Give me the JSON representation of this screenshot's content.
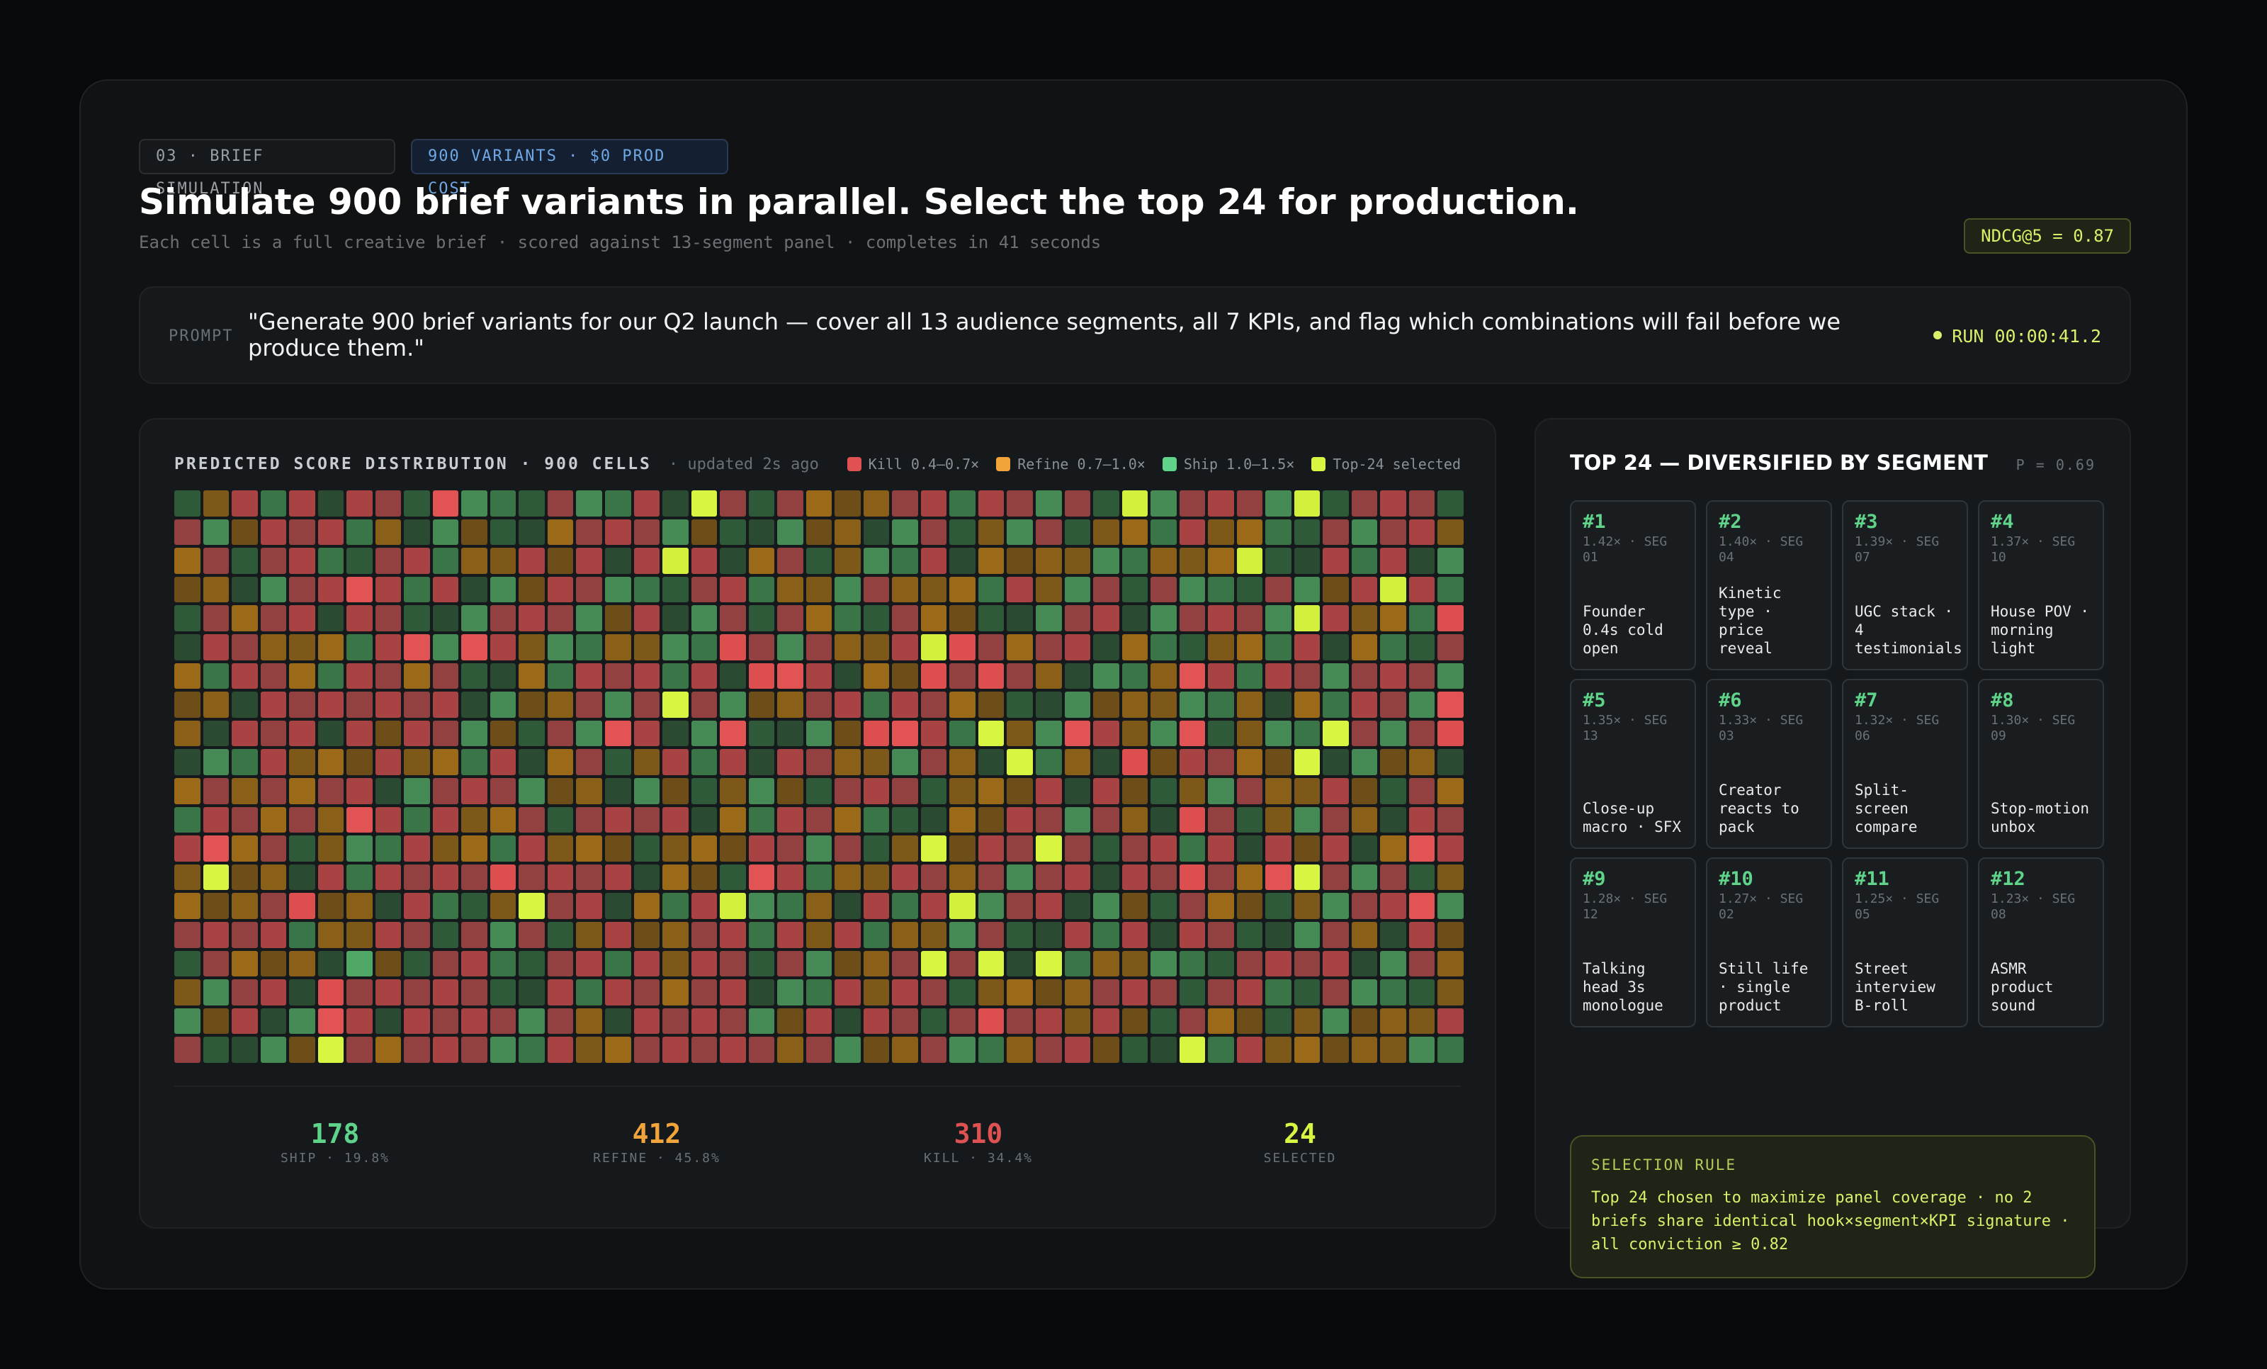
{
  "header": {
    "step_label": "03 · BRIEF SIMULATION",
    "variants_label": "900 VARIANTS · $0 PROD COST",
    "title": "Simulate 900 brief variants in parallel. Select the top 24 for production.",
    "subtitle": "Each cell is a full creative brief · scored against 13-segment panel · completes in 41 seconds",
    "metric_badge": "NDCG@5 = 0.87"
  },
  "prompt": {
    "label": "PROMPT",
    "text": "\"Generate 900 brief variants for our Q2 launch — cover all 13 audience segments, all 7 KPIs, and flag which combinations will fail before we produce them.\"",
    "status": "RUN 00:00:41.2"
  },
  "distribution": {
    "title": "PREDICTED SCORE DISTRIBUTION · 900 CELLS",
    "updated": "· updated 2s ago",
    "legend": [
      {
        "label": "Kill 0.4–0.7×",
        "color": "#e05252"
      },
      {
        "label": "Refine 0.7–1.0×",
        "color": "#f0a43a"
      },
      {
        "label": "Ship 1.0–1.5×",
        "color": "#5fd38a"
      },
      {
        "label": "Top-24 selected",
        "color": "#d8f542"
      }
    ],
    "stats": [
      {
        "value": "178",
        "label": "SHIP · 19.8%",
        "color": "#5fd38a"
      },
      {
        "value": "412",
        "label": "REFINE · 45.8%",
        "color": "#f0a43a"
      },
      {
        "value": "310",
        "label": "KILL · 34.4%",
        "color": "#e05252"
      },
      {
        "value": "24",
        "label": "SELECTED",
        "color": "#d8f542"
      }
    ]
  },
  "chart_data": {
    "type": "heatmap",
    "title": "PREDICTED SCORE DISTRIBUTION · 900 CELLS",
    "columns": 45,
    "rows": 20,
    "categories": [
      "Kill",
      "Refine",
      "Ship",
      "Top-24 selected"
    ],
    "counts": [
      310,
      412,
      178,
      24
    ],
    "cells": [
      "gorgrgrrgRgggrggrgYrgrooorrgrrgrgYgrrrgYgrrrg",
      "rgorrrgoggoggorrrgogggooggrgogrgoogrooggrgrro",
      "orgrrggrrgoororgrYrgorgoggrgooooggoooYggrgrgg",
      "ooggrrRrgrggorrgggrrgoogrooogrogrgrgggrgorYrg",
      "grorrgrrgggrrrgorggrgroggroogggrrggrrrgYroogR",
      "grrooogrRgRroggooggRrgroorYRrorrgoggoogrgoggr",
      "ogrrogrrorggogrrrgrgRRrgooRrRrogggoRrgrrgrrrg",
      "oogrrrrrrrggoorgrYrgoorrgrroogggoooggogogrrgR",
      "ogrrrgrorrgogrgRrggRgggoRRrgYogRrogRgoggYrgrR",
      "gggroooroogrgorgorgrgrroogrogYgogRorrooYggoog",
      "orororrggrrrgooggogogogrrrgooorgrogogroorogro",
      "grroroRrgroorgrrrrgogrrogggoorrgrogRrgogrogrr",
      "rRorgoggroogrooogooorrgrgoYorrYrgrrgrgrorgoRr",
      "oYoogrgrrrrRrrrrgoogRrgoorrorgrrgrrRroRYrgrgo",
      "ooorRoogrggoYrrgogrYggogrgrYgrrggogroogogrrRg",
      "rrrrgoorrgrgrgoroorrgrorgoogrggrgrgrrgggrogro",
      "grooogGogrrggrrgrorrgrgoorYrYgYgoogggrrrrggro",
      "ogrrgRrrrrrggrgrrorrgggrorrgoooorrrgrrggrgggo",
      "gorggRrgrrrrgrogrrrrgorgrrgrRrrorogroogogooor",
      "rgggoYrorrrggroorrrrrorgoorggorroggYgrooooogg"
    ]
  },
  "top": {
    "title": "TOP 24 — DIVERSIFIED BY SEGMENT",
    "p_value": "P = 0.69",
    "tiles": [
      {
        "rank": "#1",
        "meta": "1.42× · SEG 01",
        "name": "Founder 0.4s cold open"
      },
      {
        "rank": "#2",
        "meta": "1.40× · SEG 04",
        "name": "Kinetic type · price reveal"
      },
      {
        "rank": "#3",
        "meta": "1.39× · SEG 07",
        "name": "UGC stack · 4 testimonials"
      },
      {
        "rank": "#4",
        "meta": "1.37× · SEG 10",
        "name": "House POV · morning light"
      },
      {
        "rank": "#5",
        "meta": "1.35× · SEG 13",
        "name": "Close-up macro · SFX"
      },
      {
        "rank": "#6",
        "meta": "1.33× · SEG 03",
        "name": "Creator reacts to pack"
      },
      {
        "rank": "#7",
        "meta": "1.32× · SEG 06",
        "name": "Split-screen compare"
      },
      {
        "rank": "#8",
        "meta": "1.30× · SEG 09",
        "name": "Stop-motion unbox"
      },
      {
        "rank": "#9",
        "meta": "1.28× · SEG 12",
        "name": "Talking head 3s monologue"
      },
      {
        "rank": "#10",
        "meta": "1.27× · SEG 02",
        "name": "Still life · single product"
      },
      {
        "rank": "#11",
        "meta": "1.25× · SEG 05",
        "name": "Street interview B-roll"
      },
      {
        "rank": "#12",
        "meta": "1.23× · SEG 08",
        "name": "ASMR product sound"
      }
    ],
    "rule_label": "SELECTION RULE",
    "rule_text": "Top 24 chosen to maximize panel coverage · no 2 briefs share identical hook×segment×KPI signature · all conviction ≥ 0.82"
  }
}
